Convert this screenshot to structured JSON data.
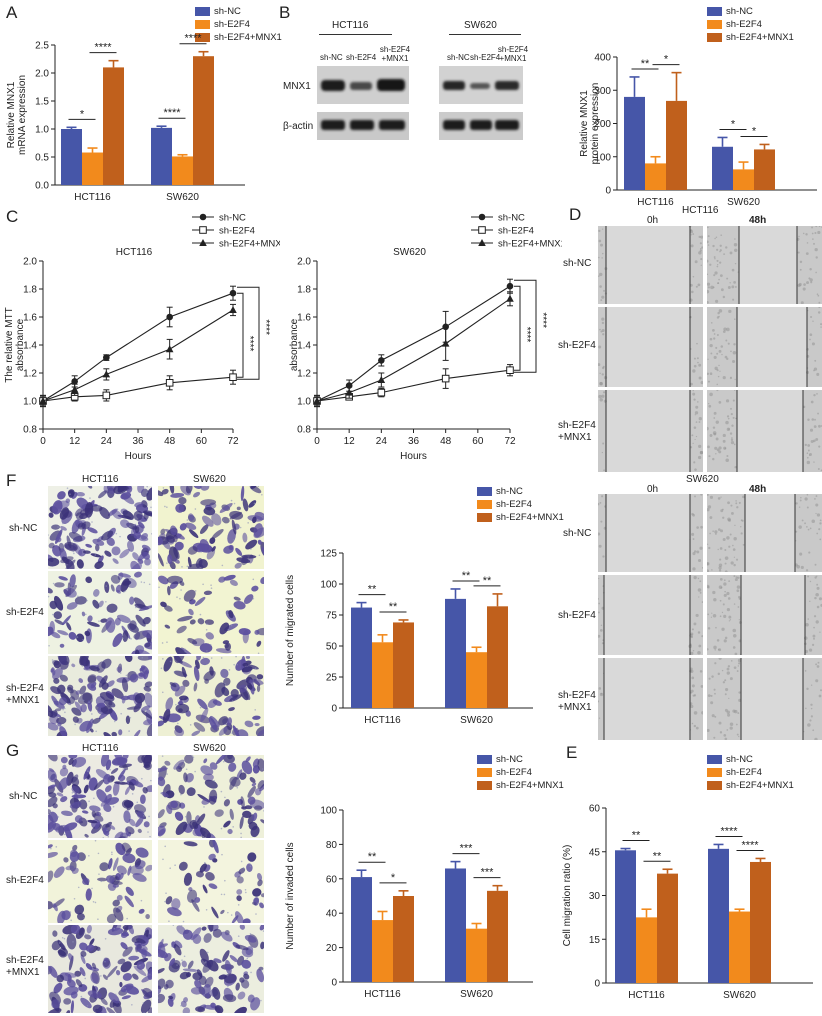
{
  "colors": {
    "nc": "#4656a8",
    "e2f4": "#f28a1c",
    "mnx1": "#c0601c"
  },
  "legend": {
    "nc": "sh-NC",
    "e2f4": "sh-E2F4",
    "mnx1": "sh-E2F4+MNX1"
  },
  "panel_letters": {
    "A": "A",
    "B": "B",
    "C": "C",
    "D": "D",
    "E": "E",
    "F": "F",
    "G": "G"
  },
  "groups": [
    "HCT116",
    "SW620"
  ],
  "wb": {
    "cell_lines": [
      "HCT116",
      "SW620"
    ],
    "lanes": [
      "sh-NC",
      "sh-E2F4",
      "sh-E2F4 +MNX1",
      "sh-NC",
      "sh-E2F4",
      "sh-E2F4 +MNX1"
    ],
    "rows": [
      "MNX1",
      "β-actin"
    ]
  },
  "micro": {
    "F": {
      "cols": [
        "HCT116",
        "SW620"
      ],
      "rows": [
        "sh-NC",
        "sh-E2F4",
        "sh-E2F4 +MNX1"
      ]
    },
    "G": {
      "cols": [
        "HCT116",
        "SW620"
      ],
      "rows": [
        "sh-NC",
        "sh-E2F4",
        "sh-E2F4 +MNX1"
      ]
    }
  },
  "scratch": {
    "hct": {
      "title": "HCT116",
      "times": [
        "0h",
        "48h"
      ],
      "rows": [
        "sh-NC",
        "sh-E2F4",
        "sh-E2F4 +MNX1"
      ]
    },
    "sw": {
      "title": "SW620",
      "times": [
        "0h",
        "48h"
      ],
      "rows": [
        "sh-NC",
        "sh-E2F4",
        "sh-E2F4 +MNX1"
      ]
    }
  },
  "chart_data": [
    {
      "id": "A",
      "type": "bar",
      "ylabel": "Relative MNX1 mRNA expression",
      "categories": [
        "HCT116",
        "SW620"
      ],
      "ylim": [
        0,
        2.5
      ],
      "yticks": [
        "0.0",
        "0.5",
        "1.0",
        "1.5",
        "2.0",
        "2.5"
      ],
      "series": [
        {
          "name": "sh-NC",
          "values": [
            1.0,
            1.02
          ],
          "err": [
            0.03,
            0.03
          ]
        },
        {
          "name": "sh-E2F4",
          "values": [
            0.58,
            0.51
          ],
          "err": [
            0.08,
            0.03
          ]
        },
        {
          "name": "sh-E2F4+MNX1",
          "values": [
            2.1,
            2.3
          ],
          "err": [
            0.12,
            0.08
          ]
        }
      ],
      "significance": [
        {
          "group": 0,
          "pair": [
            0,
            1
          ],
          "label": "*"
        },
        {
          "group": 0,
          "pair": [
            1,
            2
          ],
          "label": "****"
        },
        {
          "group": 1,
          "pair": [
            0,
            1
          ],
          "label": "****"
        },
        {
          "group": 1,
          "pair": [
            1,
            2
          ],
          "label": "****"
        }
      ]
    },
    {
      "id": "B",
      "type": "bar",
      "ylabel": "Relative MNX1 protein expression",
      "categories": [
        "HCT116",
        "SW620"
      ],
      "ylim": [
        0,
        400
      ],
      "yticks": [
        "0",
        "100",
        "200",
        "300",
        "400"
      ],
      "series": [
        {
          "name": "sh-NC",
          "values": [
            280,
            130
          ],
          "err": [
            60,
            28
          ]
        },
        {
          "name": "sh-E2F4",
          "values": [
            80,
            62
          ],
          "err": [
            20,
            22
          ]
        },
        {
          "name": "sh-E2F4+MNX1",
          "values": [
            268,
            122
          ],
          "err": [
            85,
            15
          ]
        }
      ],
      "significance": [
        {
          "group": 0,
          "pair": [
            0,
            1
          ],
          "label": "**"
        },
        {
          "group": 0,
          "pair": [
            1,
            2
          ],
          "label": "*"
        },
        {
          "group": 1,
          "pair": [
            0,
            1
          ],
          "label": "*"
        },
        {
          "group": 1,
          "pair": [
            1,
            2
          ],
          "label": "*"
        }
      ]
    },
    {
      "id": "C1",
      "type": "line",
      "title": "HCT116",
      "xlabel": "Hours",
      "ylabel": "The relative MTT absorbance",
      "x": [
        0,
        12,
        24,
        48,
        72
      ],
      "xticks": [
        "0",
        "12",
        "24",
        "36",
        "48",
        "60",
        "72"
      ],
      "yticks": [
        "0.8",
        "1.0",
        "1.2",
        "1.4",
        "1.6",
        "1.8",
        "2.0"
      ],
      "ylim": [
        0.8,
        2.0
      ],
      "xlim": [
        0,
        72
      ],
      "series": [
        {
          "name": "sh-NC",
          "marker": "circle",
          "values": [
            1.0,
            1.14,
            1.31,
            1.6,
            1.77
          ],
          "err": [
            0.04,
            0.04,
            0.02,
            0.07,
            0.05
          ]
        },
        {
          "name": "sh-E2F4",
          "marker": "square",
          "values": [
            1.0,
            1.03,
            1.04,
            1.13,
            1.17
          ],
          "err": [
            0.03,
            0.03,
            0.04,
            0.05,
            0.05
          ]
        },
        {
          "name": "sh-E2F4+MNX1",
          "marker": "triangle",
          "values": [
            1.0,
            1.08,
            1.19,
            1.37,
            1.65
          ],
          "err": [
            0.04,
            0.04,
            0.04,
            0.07,
            0.04
          ]
        }
      ],
      "significance": [
        "****",
        "****"
      ]
    },
    {
      "id": "C2",
      "type": "line",
      "title": "SW620",
      "xlabel": "Hours",
      "ylabel": "The relative MTT absorbance",
      "x": [
        0,
        12,
        24,
        48,
        72
      ],
      "xticks": [
        "0",
        "12",
        "24",
        "36",
        "48",
        "60",
        "72"
      ],
      "yticks": [
        "0.8",
        "1.0",
        "1.2",
        "1.4",
        "1.6",
        "1.8",
        "2.0"
      ],
      "ylim": [
        0.8,
        2.0
      ],
      "xlim": [
        0,
        72
      ],
      "series": [
        {
          "name": "sh-NC",
          "marker": "circle",
          "values": [
            1.0,
            1.11,
            1.29,
            1.53,
            1.82
          ],
          "err": [
            0.04,
            0.04,
            0.04,
            0.11,
            0.05
          ]
        },
        {
          "name": "sh-E2F4",
          "marker": "square",
          "values": [
            1.0,
            1.03,
            1.06,
            1.16,
            1.22
          ],
          "err": [
            0.03,
            0.02,
            0.03,
            0.07,
            0.04
          ]
        },
        {
          "name": "sh-E2F4+MNX1",
          "marker": "triangle",
          "values": [
            1.0,
            1.06,
            1.15,
            1.41,
            1.73
          ],
          "err": [
            0.04,
            0.04,
            0.05,
            0.12,
            0.05
          ]
        }
      ],
      "significance": [
        "****",
        "****"
      ]
    },
    {
      "id": "F",
      "type": "bar",
      "ylabel": "Number of migrated cells",
      "categories": [
        "HCT116",
        "SW620"
      ],
      "ylim": [
        0,
        125
      ],
      "yticks": [
        "0",
        "25",
        "50",
        "75",
        "100",
        "125"
      ],
      "series": [
        {
          "name": "sh-NC",
          "values": [
            81,
            88
          ],
          "err": [
            4,
            8
          ]
        },
        {
          "name": "sh-E2F4",
          "values": [
            53,
            45
          ],
          "err": [
            6,
            4
          ]
        },
        {
          "name": "sh-E2F4+MNX1",
          "values": [
            69,
            82
          ],
          "err": [
            2,
            10
          ]
        }
      ],
      "significance": [
        {
          "group": 0,
          "pair": [
            0,
            1
          ],
          "label": "**"
        },
        {
          "group": 0,
          "pair": [
            1,
            2
          ],
          "label": "**"
        },
        {
          "group": 1,
          "pair": [
            0,
            1
          ],
          "label": "**"
        },
        {
          "group": 1,
          "pair": [
            1,
            2
          ],
          "label": "**"
        }
      ]
    },
    {
      "id": "G",
      "type": "bar",
      "ylabel": "Number of invaded cells",
      "categories": [
        "HCT116",
        "SW620"
      ],
      "ylim": [
        0,
        100
      ],
      "yticks": [
        "0",
        "20",
        "40",
        "60",
        "80",
        "100"
      ],
      "series": [
        {
          "name": "sh-NC",
          "values": [
            61,
            66
          ],
          "err": [
            4,
            4
          ]
        },
        {
          "name": "sh-E2F4",
          "values": [
            36,
            31
          ],
          "err": [
            5,
            3
          ]
        },
        {
          "name": "sh-E2F4+MNX1",
          "values": [
            50,
            53
          ],
          "err": [
            3,
            3
          ]
        }
      ],
      "significance": [
        {
          "group": 0,
          "pair": [
            0,
            1
          ],
          "label": "**"
        },
        {
          "group": 0,
          "pair": [
            1,
            2
          ],
          "label": "*"
        },
        {
          "group": 1,
          "pair": [
            0,
            1
          ],
          "label": "***"
        },
        {
          "group": 1,
          "pair": [
            1,
            2
          ],
          "label": "***"
        }
      ]
    },
    {
      "id": "E",
      "type": "bar",
      "ylabel": "Cell migration ratio (%)",
      "categories": [
        "HCT116",
        "SW620"
      ],
      "ylim": [
        0,
        60
      ],
      "yticks": [
        "0",
        "15",
        "30",
        "45",
        "60"
      ],
      "series": [
        {
          "name": "sh-NC",
          "values": [
            45.5,
            46
          ],
          "err": [
            0.6,
            1.5
          ]
        },
        {
          "name": "sh-E2F4",
          "values": [
            22.5,
            24.5
          ],
          "err": [
            2.8,
            0.8
          ]
        },
        {
          "name": "sh-E2F4+MNX1",
          "values": [
            37.5,
            41.5
          ],
          "err": [
            1.5,
            1.2
          ]
        }
      ],
      "significance": [
        {
          "group": 0,
          "pair": [
            0,
            1
          ],
          "label": "**"
        },
        {
          "group": 0,
          "pair": [
            1,
            2
          ],
          "label": "**"
        },
        {
          "group": 1,
          "pair": [
            0,
            1
          ],
          "label": "****"
        },
        {
          "group": 1,
          "pair": [
            1,
            2
          ],
          "label": "****"
        }
      ]
    }
  ]
}
